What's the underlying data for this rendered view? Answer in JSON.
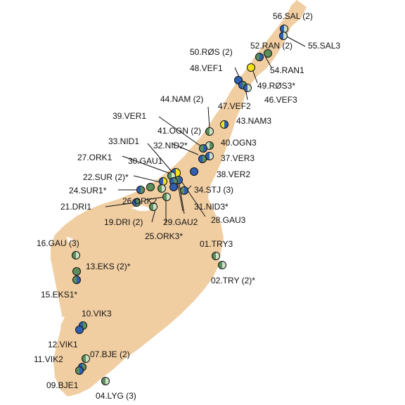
{
  "map": {
    "land_color": "#f1cea2",
    "marker_colors": {
      "left": "#2f5fb0",
      "right": "#5b8f5b",
      "cream": "#cfe0c6",
      "yellow": "#f1e11a",
      "outline": "#111111"
    },
    "sites": [
      {
        "id": "s56",
        "label": "56.SAL (2)"
      },
      {
        "id": "s55",
        "label": "55.SAL3"
      },
      {
        "id": "s52",
        "label": "52.RAN (2)"
      },
      {
        "id": "s50",
        "label": "50.RØS (2)"
      },
      {
        "id": "s54",
        "label": "54.RAN1"
      },
      {
        "id": "s48",
        "label": "48.VEF1"
      },
      {
        "id": "s49",
        "label": "49.RØS3*"
      },
      {
        "id": "s44",
        "label": "44.NAM (2)"
      },
      {
        "id": "s47",
        "label": "47.VEF2"
      },
      {
        "id": "s46",
        "label": "46.VEF3"
      },
      {
        "id": "s39",
        "label": "39.VER1"
      },
      {
        "id": "s43",
        "label": "43.NAM3"
      },
      {
        "id": "s41",
        "label": "41.OGN (2)"
      },
      {
        "id": "s33",
        "label": "33.NID1"
      },
      {
        "id": "s40",
        "label": "40.OGN3"
      },
      {
        "id": "s32",
        "label": "32.NID2*"
      },
      {
        "id": "s37",
        "label": "37.VER3"
      },
      {
        "id": "s27",
        "label": "27.ORK1"
      },
      {
        "id": "s30",
        "label": "30.GAU1"
      },
      {
        "id": "s38",
        "label": "38.VER2"
      },
      {
        "id": "s22",
        "label": "22.SUR (2)*"
      },
      {
        "id": "s24",
        "label": "24.SUR1*"
      },
      {
        "id": "s34",
        "label": "34.STJ (3)"
      },
      {
        "id": "s26",
        "label": "26.ORK2"
      },
      {
        "id": "s21",
        "label": "21.DRI1"
      },
      {
        "id": "s31",
        "label": "31.NID3*"
      },
      {
        "id": "s19",
        "label": "19.DRI (2)"
      },
      {
        "id": "s29",
        "label": "29.GAU2"
      },
      {
        "id": "s28",
        "label": "28.GAU3"
      },
      {
        "id": "s25",
        "label": "25.ORK3*"
      },
      {
        "id": "s16",
        "label": "16.GAU (3)"
      },
      {
        "id": "s01",
        "label": "01.TRY3"
      },
      {
        "id": "s13",
        "label": "13.EKS (2)*"
      },
      {
        "id": "s02",
        "label": "02.TRY (2)*"
      },
      {
        "id": "s15",
        "label": "15.EKS1*"
      },
      {
        "id": "s10",
        "label": "10.VIK3"
      },
      {
        "id": "s12",
        "label": "12.VIK1"
      },
      {
        "id": "s07",
        "label": "07.BJE (2)"
      },
      {
        "id": "s11",
        "label": "11.VIK2"
      },
      {
        "id": "s09",
        "label": "09.BJE1"
      },
      {
        "id": "s04",
        "label": "04.LYG (3)"
      }
    ]
  }
}
